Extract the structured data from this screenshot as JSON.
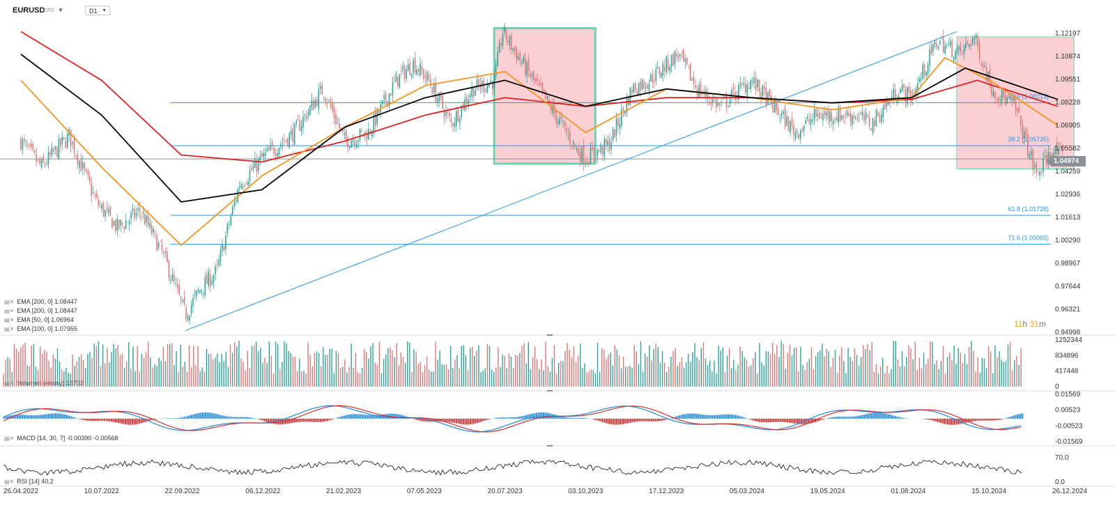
{
  "header": {
    "symbol": "EURUSD",
    "instrument_type": "CFD",
    "timeframe": "D1"
  },
  "price_axis": {
    "ticks": [
      "1.12197",
      "1.10874",
      "1.09551",
      "1.08228",
      "1.06905",
      "1.05582",
      "1.04259",
      "1.02936",
      "1.01613",
      "1.00290",
      "0.98967",
      "0.97644",
      "0.96321",
      "0.94998"
    ],
    "current_price": "1.04974"
  },
  "date_axis": {
    "ticks": [
      "26.04.2022",
      "10.07.2022",
      "22.09.2022",
      "06.12.2022",
      "21.02.2023",
      "07.05.2023",
      "20.07.2023",
      "03.10.2023",
      "17.12.2023",
      "05.03.2024",
      "19.05.2024",
      "01.08.2024",
      "15.10.2024",
      "26.12.2024"
    ]
  },
  "legend": {
    "items": [
      {
        "label": "EMA [200, 0] 1.08447",
        "color": "#7a7a7a"
      },
      {
        "label": "EMA [200, 0] 1.08447",
        "color": "#000000"
      },
      {
        "label": "EMA [50, 0] 1.06964",
        "color": "#f7931e"
      },
      {
        "label": "EMA [100, 0] 1.07955",
        "color": "#e02020"
      }
    ]
  },
  "fibonacci": [
    {
      "label": "23.6 (1.08213)",
      "value": 1.08213
    },
    {
      "label": "38.2 (1.05735)",
      "value": 1.05735
    },
    {
      "label": "61.8 (1.01728)",
      "value": 1.01728
    },
    {
      "label": "71.6 (1.00065)",
      "value": 1.00065
    }
  ],
  "countdown": {
    "hours": "11",
    "hours_unit": "h",
    "minutes": "31",
    "minutes_unit": "m"
  },
  "volume": {
    "label": "Volumen (realny)",
    "value": "15702",
    "ticks": [
      "1252344",
      "834896",
      "417448",
      "0"
    ]
  },
  "macd": {
    "label": "MACD [14, 30, 7]",
    "value1": "-0.00390",
    "value2": "-0.00568",
    "ticks": [
      "0.01569",
      "0.00523",
      "-0.00523",
      "-0.01569"
    ]
  },
  "rsi": {
    "label": "RSI [14]",
    "value": "40.2",
    "ticks": [
      "70.0",
      "0.0"
    ]
  },
  "colors": {
    "up": "#26a69a",
    "down": "#e57373",
    "ema_grey": "#7a7a7a",
    "ema_black": "#000000",
    "ema50": "#f7931e",
    "ema100": "#e02020",
    "fib": "#2196f3",
    "highlight_fill": "#f9c8cc",
    "highlight_border": "#6dd4b1"
  },
  "chart_data": {
    "type": "candlestick",
    "x_range": [
      "26.04.2022",
      "26.12.2024"
    ],
    "y_range": [
      0.94998,
      1.12197
    ],
    "close_path": [
      [
        "26.04.2022",
        1.06
      ],
      [
        "15.05.2022",
        1.045
      ],
      [
        "10.06.2022",
        1.063
      ],
      [
        "05.07.2022",
        1.025
      ],
      [
        "25.07.2022",
        1.01
      ],
      [
        "15.08.2022",
        1.02
      ],
      [
        "05.09.2022",
        0.995
      ],
      [
        "26.09.2022",
        0.96
      ],
      [
        "10.10.2022",
        0.975
      ],
      [
        "25.10.2022",
        0.985
      ],
      [
        "15.11.2022",
        1.035
      ],
      [
        "06.12.2022",
        1.05
      ],
      [
        "05.01.2023",
        1.065
      ],
      [
        "01.02.2023",
        1.09
      ],
      [
        "21.02.2023",
        1.06
      ],
      [
        "15.03.2023",
        1.065
      ],
      [
        "10.04.2023",
        1.095
      ],
      [
        "26.04.2023",
        1.105
      ],
      [
        "10.05.2023",
        1.095
      ],
      [
        "31.05.2023",
        1.07
      ],
      [
        "20.06.2023",
        1.09
      ],
      [
        "10.07.2023",
        1.095
      ],
      [
        "18.07.2023",
        1.123
      ],
      [
        "10.08.2023",
        1.1
      ],
      [
        "05.09.2023",
        1.075
      ],
      [
        "25.09.2023",
        1.055
      ],
      [
        "03.10.2023",
        1.05
      ],
      [
        "25.10.2023",
        1.058
      ],
      [
        "15.11.2023",
        1.09
      ],
      [
        "01.12.2023",
        1.095
      ],
      [
        "28.12.2023",
        1.11
      ],
      [
        "15.01.2024",
        1.09
      ],
      [
        "05.02.2024",
        1.08
      ],
      [
        "05.03.2024",
        1.095
      ],
      [
        "15.04.2024",
        1.065
      ],
      [
        "05.05.2024",
        1.075
      ],
      [
        "10.06.2024",
        1.075
      ],
      [
        "25.06.2024",
        1.07
      ],
      [
        "20.07.2024",
        1.09
      ],
      [
        "01.08.2024",
        1.085
      ],
      [
        "25.08.2024",
        1.118
      ],
      [
        "15.09.2024",
        1.11
      ],
      [
        "28.09.2024",
        1.12
      ],
      [
        "15.10.2024",
        1.09
      ],
      [
        "05.11.2024",
        1.08
      ],
      [
        "25.11.2024",
        1.04
      ],
      [
        "10.12.2024",
        1.055
      ],
      [
        "20.12.2024",
        1.05
      ]
    ],
    "ema_50": [
      [
        "26.04.2022",
        1.095
      ],
      [
        "10.07.2022",
        1.045
      ],
      [
        "22.09.2022",
        1.0
      ],
      [
        "06.12.2022",
        1.04
      ],
      [
        "21.02.2023",
        1.068
      ],
      [
        "07.05.2023",
        1.092
      ],
      [
        "20.07.2023",
        1.1
      ],
      [
        "03.10.2023",
        1.065
      ],
      [
        "17.12.2023",
        1.09
      ],
      [
        "05.03.2024",
        1.085
      ],
      [
        "19.05.2024",
        1.078
      ],
      [
        "01.08.2024",
        1.085
      ],
      [
        "01.09.2024",
        1.108
      ],
      [
        "15.10.2024",
        1.094
      ],
      [
        "15.12.2024",
        1.069
      ]
    ],
    "ema_100": [
      [
        "26.04.2022",
        1.123
      ],
      [
        "10.07.2022",
        1.095
      ],
      [
        "22.09.2022",
        1.052
      ],
      [
        "06.12.2022",
        1.048
      ],
      [
        "21.02.2023",
        1.06
      ],
      [
        "07.05.2023",
        1.075
      ],
      [
        "20.07.2023",
        1.085
      ],
      [
        "03.10.2023",
        1.08
      ],
      [
        "17.12.2023",
        1.085
      ],
      [
        "05.03.2024",
        1.085
      ],
      [
        "19.05.2024",
        1.082
      ],
      [
        "01.08.2024",
        1.084
      ],
      [
        "01.10.2024",
        1.095
      ],
      [
        "15.12.2024",
        1.08
      ]
    ],
    "ema_200": [
      [
        "26.04.2022",
        1.11
      ],
      [
        "10.07.2022",
        1.075
      ],
      [
        "22.09.2022",
        1.025
      ],
      [
        "06.12.2022",
        1.032
      ],
      [
        "21.02.2023",
        1.068
      ],
      [
        "07.05.2023",
        1.085
      ],
      [
        "20.07.2023",
        1.095
      ],
      [
        "03.10.2023",
        1.08
      ],
      [
        "17.12.2023",
        1.09
      ],
      [
        "05.03.2024",
        1.085
      ],
      [
        "19.05.2024",
        1.082
      ],
      [
        "01.08.2024",
        1.085
      ],
      [
        "20.09.2024",
        1.102
      ],
      [
        "15.12.2024",
        1.084
      ]
    ],
    "trendline": [
      [
        "26.09.2022",
        0.951
      ],
      [
        "12.09.2024",
        1.123
      ]
    ],
    "highlight_zones": [
      {
        "from": "10.07.2023",
        "to": "12.10.2023",
        "top": 1.125,
        "bottom": 1.047
      },
      {
        "from": "12.09.2024",
        "to": "30.12.2024",
        "top": 1.12,
        "bottom": 1.044
      }
    ],
    "fib_levels": [
      1.08213,
      1.05735,
      1.01728,
      1.00065
    ],
    "current_price": 1.04974
  }
}
